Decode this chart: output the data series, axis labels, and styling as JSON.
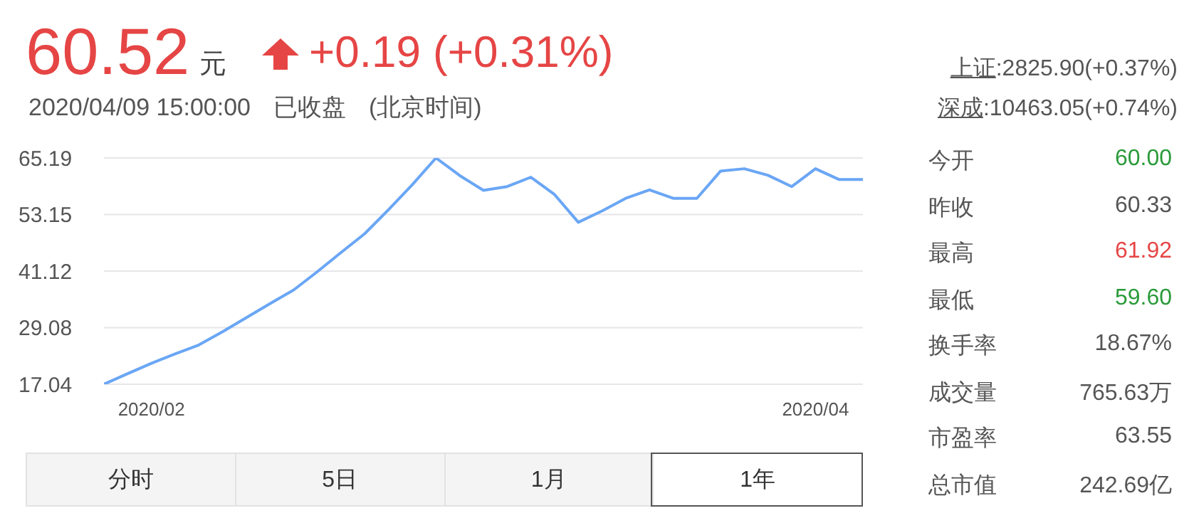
{
  "chart_data": {
    "type": "line",
    "categories": [
      null,
      null,
      "2020/02",
      null,
      null,
      null,
      null,
      null,
      null,
      null,
      null,
      null,
      null,
      null,
      null,
      null,
      null,
      null,
      null,
      null,
      null,
      null,
      null,
      null,
      null,
      null,
      null,
      null,
      null,
      null,
      "2020/04",
      null,
      null
    ],
    "series": [
      {
        "color": "#6aa6f5",
        "values": [
          17.04,
          19.3,
          21.5,
          23.5,
          25.4,
          28.2,
          31.2,
          34.2,
          37.1,
          41.0,
          45.1,
          49.1,
          54.2,
          59.5,
          65.19,
          61.45,
          58.3,
          59.1,
          61.1,
          57.4,
          51.5,
          53.9,
          56.6,
          58.4,
          56.6,
          56.6,
          62.4,
          62.9,
          61.5,
          59.1,
          62.9,
          60.6,
          60.6
        ]
      }
    ],
    "ylim": [
      17.04,
      65.19
    ],
    "yticks": [
      17.04,
      29.08,
      41.12,
      53.15,
      65.19
    ],
    "grid": "y",
    "marker": "none",
    "legend": false,
    "annotations": [
      "60.52",
      "元",
      "+0.19 (+0.31%)",
      "2020/04/09 15:00:00",
      "已收盘",
      "(北京时间)",
      "上证:2825.90(+0.37%)",
      "深成:10463.05(+0.74%)",
      "今开",
      "60.00",
      "昨收",
      "60.33",
      "最高",
      "61.92",
      "最低",
      "59.60",
      "换手率",
      "18.67%",
      "成交量",
      "765.63万",
      "市盈率",
      "63.55",
      "总市值",
      "242.69亿",
      "分时",
      "5日",
      "1月",
      "1年"
    ]
  }
}
